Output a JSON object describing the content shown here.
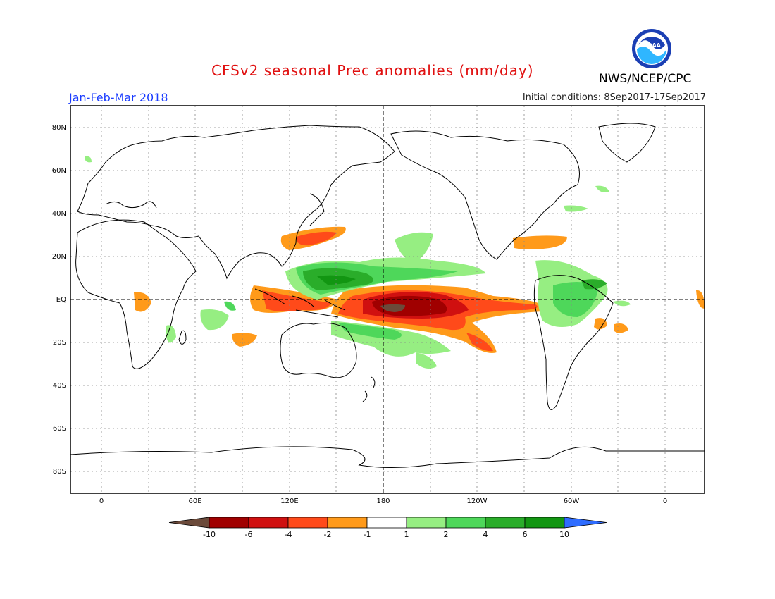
{
  "header": {
    "title": "CFSv2 seasonal Prec anomalies (mm/day)",
    "period": "Jan-Feb-Mar 2018",
    "initial_conditions": "Initial conditions: 8Sep2017-17Sep2017",
    "agency": "NWS/NCEP/CPC",
    "logo_text": "NOAA"
  },
  "map": {
    "lat_labels": [
      "80N",
      "60N",
      "40N",
      "20N",
      "EQ",
      "20S",
      "40S",
      "60S",
      "80S"
    ],
    "lon_labels": [
      "0",
      "60E",
      "120E",
      "180",
      "120W",
      "60W",
      "0"
    ]
  },
  "colorbar": {
    "labels": [
      "-10",
      "-6",
      "-4",
      "-2",
      "-1",
      "1",
      "2",
      "4",
      "6",
      "10"
    ],
    "colors": [
      "#6b4a3a",
      "#a00000",
      "#d01010",
      "#ff4a1a",
      "#ff9a1a",
      "#ffffff",
      "#96ee82",
      "#4ed75a",
      "#2aad2a",
      "#129612",
      "#2e6cff"
    ]
  }
}
